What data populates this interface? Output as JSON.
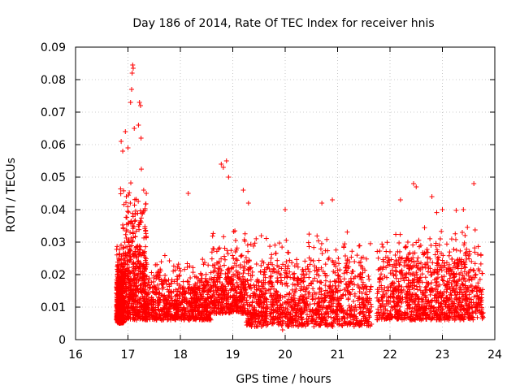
{
  "chart_data": {
    "type": "scatter",
    "title": "Day 186 of 2014, Rate Of TEC Index for receiver hnis",
    "xlabel": "GPS time / hours",
    "ylabel": "ROTI / TECUs",
    "xlim": [
      16,
      24
    ],
    "ylim": [
      0,
      0.09
    ],
    "x_ticks": [
      "16",
      "17",
      "18",
      "19",
      "20",
      "21",
      "22",
      "23",
      "24"
    ],
    "y_ticks": [
      "0",
      "0.01",
      "0.02",
      "0.03",
      "0.04",
      "0.05",
      "0.06",
      "0.07",
      "0.08",
      "0.09"
    ],
    "grid": true,
    "marker": "+",
    "color": "#ff0000",
    "data_range_x": [
      16.78,
      23.78
    ],
    "data_gap_x": [
      21.65,
      21.75
    ],
    "series": [
      {
        "name": "ROTI",
        "highlights": [
          {
            "x": 16.87,
            "y": 0.061
          },
          {
            "x": 16.9,
            "y": 0.058
          },
          {
            "x": 16.95,
            "y": 0.064
          },
          {
            "x": 17.0,
            "y": 0.059
          },
          {
            "x": 17.05,
            "y": 0.073
          },
          {
            "x": 17.07,
            "y": 0.077
          },
          {
            "x": 17.08,
            "y": 0.082
          },
          {
            "x": 17.09,
            "y": 0.0845
          },
          {
            "x": 17.1,
            "y": 0.0835
          },
          {
            "x": 17.12,
            "y": 0.065
          },
          {
            "x": 17.2,
            "y": 0.066
          },
          {
            "x": 17.22,
            "y": 0.073
          },
          {
            "x": 17.24,
            "y": 0.072
          },
          {
            "x": 17.25,
            "y": 0.062
          },
          {
            "x": 17.3,
            "y": 0.046
          },
          {
            "x": 17.35,
            "y": 0.045
          },
          {
            "x": 18.15,
            "y": 0.045
          },
          {
            "x": 18.78,
            "y": 0.054
          },
          {
            "x": 18.82,
            "y": 0.053
          },
          {
            "x": 18.88,
            "y": 0.055
          },
          {
            "x": 18.92,
            "y": 0.05
          },
          {
            "x": 19.2,
            "y": 0.046
          },
          {
            "x": 19.3,
            "y": 0.042
          },
          {
            "x": 20.0,
            "y": 0.04
          },
          {
            "x": 20.7,
            "y": 0.042
          },
          {
            "x": 20.9,
            "y": 0.043
          },
          {
            "x": 22.2,
            "y": 0.043
          },
          {
            "x": 22.45,
            "y": 0.048
          },
          {
            "x": 22.5,
            "y": 0.047
          },
          {
            "x": 22.8,
            "y": 0.044
          },
          {
            "x": 23.0,
            "y": 0.04
          },
          {
            "x": 23.4,
            "y": 0.04
          },
          {
            "x": 23.6,
            "y": 0.048
          },
          {
            "x": 19.95,
            "y": 0.003
          },
          {
            "x": 20.05,
            "y": 0.004
          }
        ],
        "bands": [
          {
            "x": [
              16.78,
              16.92
            ],
            "y_range": [
              0.005,
              0.03
            ],
            "count": 600
          },
          {
            "x": [
              16.9,
              17.35
            ],
            "y_range": [
              0.006,
              0.05
            ],
            "count": 500
          },
          {
            "x": [
              16.85,
              17.3
            ],
            "y_range": [
              0.02,
              0.058
            ],
            "count": 60
          },
          {
            "x": [
              17.3,
              18.6
            ],
            "y_range": [
              0.006,
              0.027
            ],
            "count": 800
          },
          {
            "x": [
              18.6,
              19.25
            ],
            "y_range": [
              0.008,
              0.036
            ],
            "count": 400
          },
          {
            "x": [
              19.25,
              21.65
            ],
            "y_range": [
              0.004,
              0.035
            ],
            "count": 1200
          },
          {
            "x": [
              21.75,
              23.78
            ],
            "y_range": [
              0.006,
              0.035
            ],
            "count": 1000
          },
          {
            "x": [
              22.1,
              23.5
            ],
            "y_range": [
              0.02,
              0.04
            ],
            "count": 100
          }
        ]
      }
    ]
  }
}
